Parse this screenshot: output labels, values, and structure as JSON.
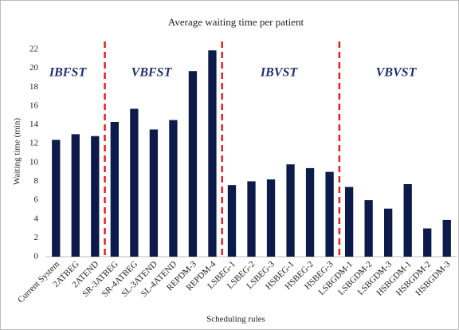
{
  "chart_data": {
    "type": "bar",
    "title": "Average waiting time per patient",
    "x_label": "Scheduling rules",
    "y_label": "Waiting time (min)",
    "categories": [
      "Current System",
      "2ATBEG",
      "2ATEND",
      "SR-3ATBEG",
      "SR-4ATBEG",
      "SL-3ATEND",
      "SL-4ATEND",
      "REPDM-3",
      "REPDM-4",
      "LSBEG-1",
      "LSBEG-2",
      "LSBEG-3",
      "HSBEG-1",
      "HSBEG-2",
      "HSBEG-3",
      "LSBGDM-1",
      "LSBGDM-2",
      "LSBGDM-3",
      "HSBGDM-1",
      "HSBGDM-2",
      "HSBGDM-3"
    ],
    "values": [
      12.4,
      13.0,
      12.8,
      14.3,
      15.7,
      13.5,
      14.5,
      19.7,
      21.9,
      7.6,
      8.0,
      8.2,
      9.8,
      9.4,
      9.0,
      7.4,
      6.0,
      5.1,
      7.7,
      3.0,
      3.9
    ],
    "color": "#0d1b4b",
    "ylim": [
      0,
      22
    ],
    "yticks": [
      0,
      2,
      4,
      6,
      8,
      10,
      12,
      14,
      16,
      18,
      20,
      22
    ],
    "grid": false,
    "annotations": [
      "IBFST",
      "VBFST",
      "IBVST",
      "VBVST"
    ]
  }
}
